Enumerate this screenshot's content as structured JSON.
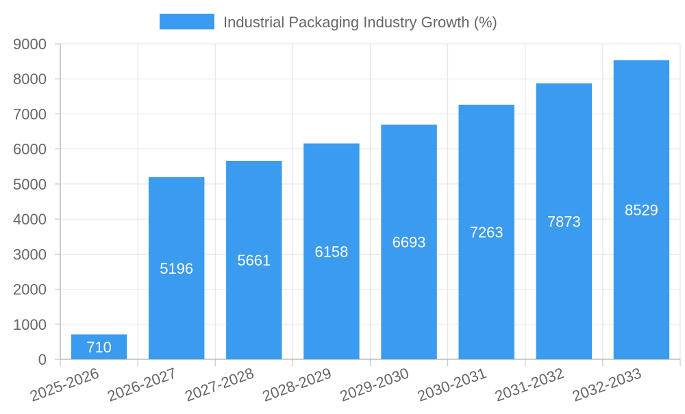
{
  "chart_data": {
    "type": "bar",
    "title": "",
    "categories": [
      "2025-2026",
      "2026-2027",
      "2027-2028",
      "2028-2029",
      "2029-2030",
      "2030-2031",
      "2031-2032",
      "2032-2033"
    ],
    "series": [
      {
        "name": "Industrial Packaging Industry Growth (%)",
        "values": [
          710,
          5196,
          5661,
          6158,
          6693,
          7263,
          7873,
          8529
        ],
        "color": "#3a9bef"
      }
    ],
    "data_labels": [
      "710",
      "5196",
      "5661",
      "6158",
      "6693",
      "7263",
      "7873",
      "8529"
    ],
    "y_ticks": [
      "0",
      "1000",
      "2000",
      "3000",
      "4000",
      "5000",
      "6000",
      "7000",
      "8000",
      "9000"
    ],
    "ylim": [
      0,
      9000
    ],
    "xlabel": "",
    "ylabel": "",
    "grid": true,
    "legend_position": "top-center",
    "colors": {
      "bar": "#3a9bef",
      "grid": "#e0e0e0",
      "axis": "#bbbbbb",
      "text": "#666666",
      "data_label": "#ffffff"
    }
  }
}
